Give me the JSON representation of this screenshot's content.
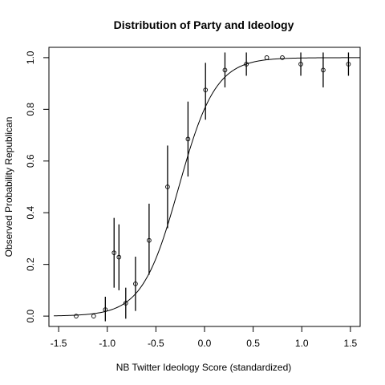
{
  "chart_data": {
    "type": "scatter",
    "title": "Distribution of Party and Ideology",
    "xlabel": "NB Twitter Ideology Score (standardized)",
    "ylabel": "Observed Probability Republican",
    "xlim": [
      -1.6,
      1.6
    ],
    "ylim": [
      -0.04,
      1.04
    ],
    "xticks": [
      -1.5,
      -1.0,
      -0.5,
      0.0,
      0.5,
      1.0,
      1.5
    ],
    "xtick_labels": [
      "-1.5",
      "-1.0",
      "-0.5",
      "0.0",
      "0.5",
      "1.0",
      "1.5"
    ],
    "yticks": [
      0.0,
      0.2,
      0.4,
      0.6,
      0.8,
      1.0
    ],
    "ytick_labels": [
      "0.0",
      "0.2",
      "0.4",
      "0.6",
      "0.8",
      "1.0"
    ],
    "grid": false,
    "points": [
      {
        "x": -1.32,
        "y": 0.0,
        "lo": null,
        "hi": null
      },
      {
        "x": -1.14,
        "y": 0.0,
        "lo": null,
        "hi": null
      },
      {
        "x": -1.02,
        "y": 0.025,
        "lo": -0.02,
        "hi": 0.075
      },
      {
        "x": -0.93,
        "y": 0.245,
        "lo": 0.11,
        "hi": 0.38
      },
      {
        "x": -0.88,
        "y": 0.228,
        "lo": 0.1,
        "hi": 0.355
      },
      {
        "x": -0.81,
        "y": 0.05,
        "lo": -0.01,
        "hi": 0.11
      },
      {
        "x": -0.71,
        "y": 0.125,
        "lo": 0.02,
        "hi": 0.23
      },
      {
        "x": -0.57,
        "y": 0.293,
        "lo": 0.16,
        "hi": 0.435
      },
      {
        "x": -0.38,
        "y": 0.5,
        "lo": 0.34,
        "hi": 0.66
      },
      {
        "x": -0.17,
        "y": 0.685,
        "lo": 0.54,
        "hi": 0.83
      },
      {
        "x": 0.01,
        "y": 0.875,
        "lo": 0.76,
        "hi": 0.98
      },
      {
        "x": 0.21,
        "y": 0.952,
        "lo": 0.885,
        "hi": 1.02
      },
      {
        "x": 0.43,
        "y": 0.975,
        "lo": 0.93,
        "hi": 1.02
      },
      {
        "x": 0.64,
        "y": 1.0,
        "lo": null,
        "hi": null
      },
      {
        "x": 0.8,
        "y": 1.0,
        "lo": null,
        "hi": null
      },
      {
        "x": 0.99,
        "y": 0.975,
        "lo": 0.93,
        "hi": 1.02
      },
      {
        "x": 1.22,
        "y": 0.952,
        "lo": 0.885,
        "hi": 1.02
      },
      {
        "x": 1.48,
        "y": 0.975,
        "lo": 0.93,
        "hi": 1.02
      }
    ],
    "fit_curve": {
      "type": "logistic",
      "intercept": 1.4,
      "slope": 5.3,
      "x_range": [
        -1.55,
        1.6
      ]
    }
  }
}
